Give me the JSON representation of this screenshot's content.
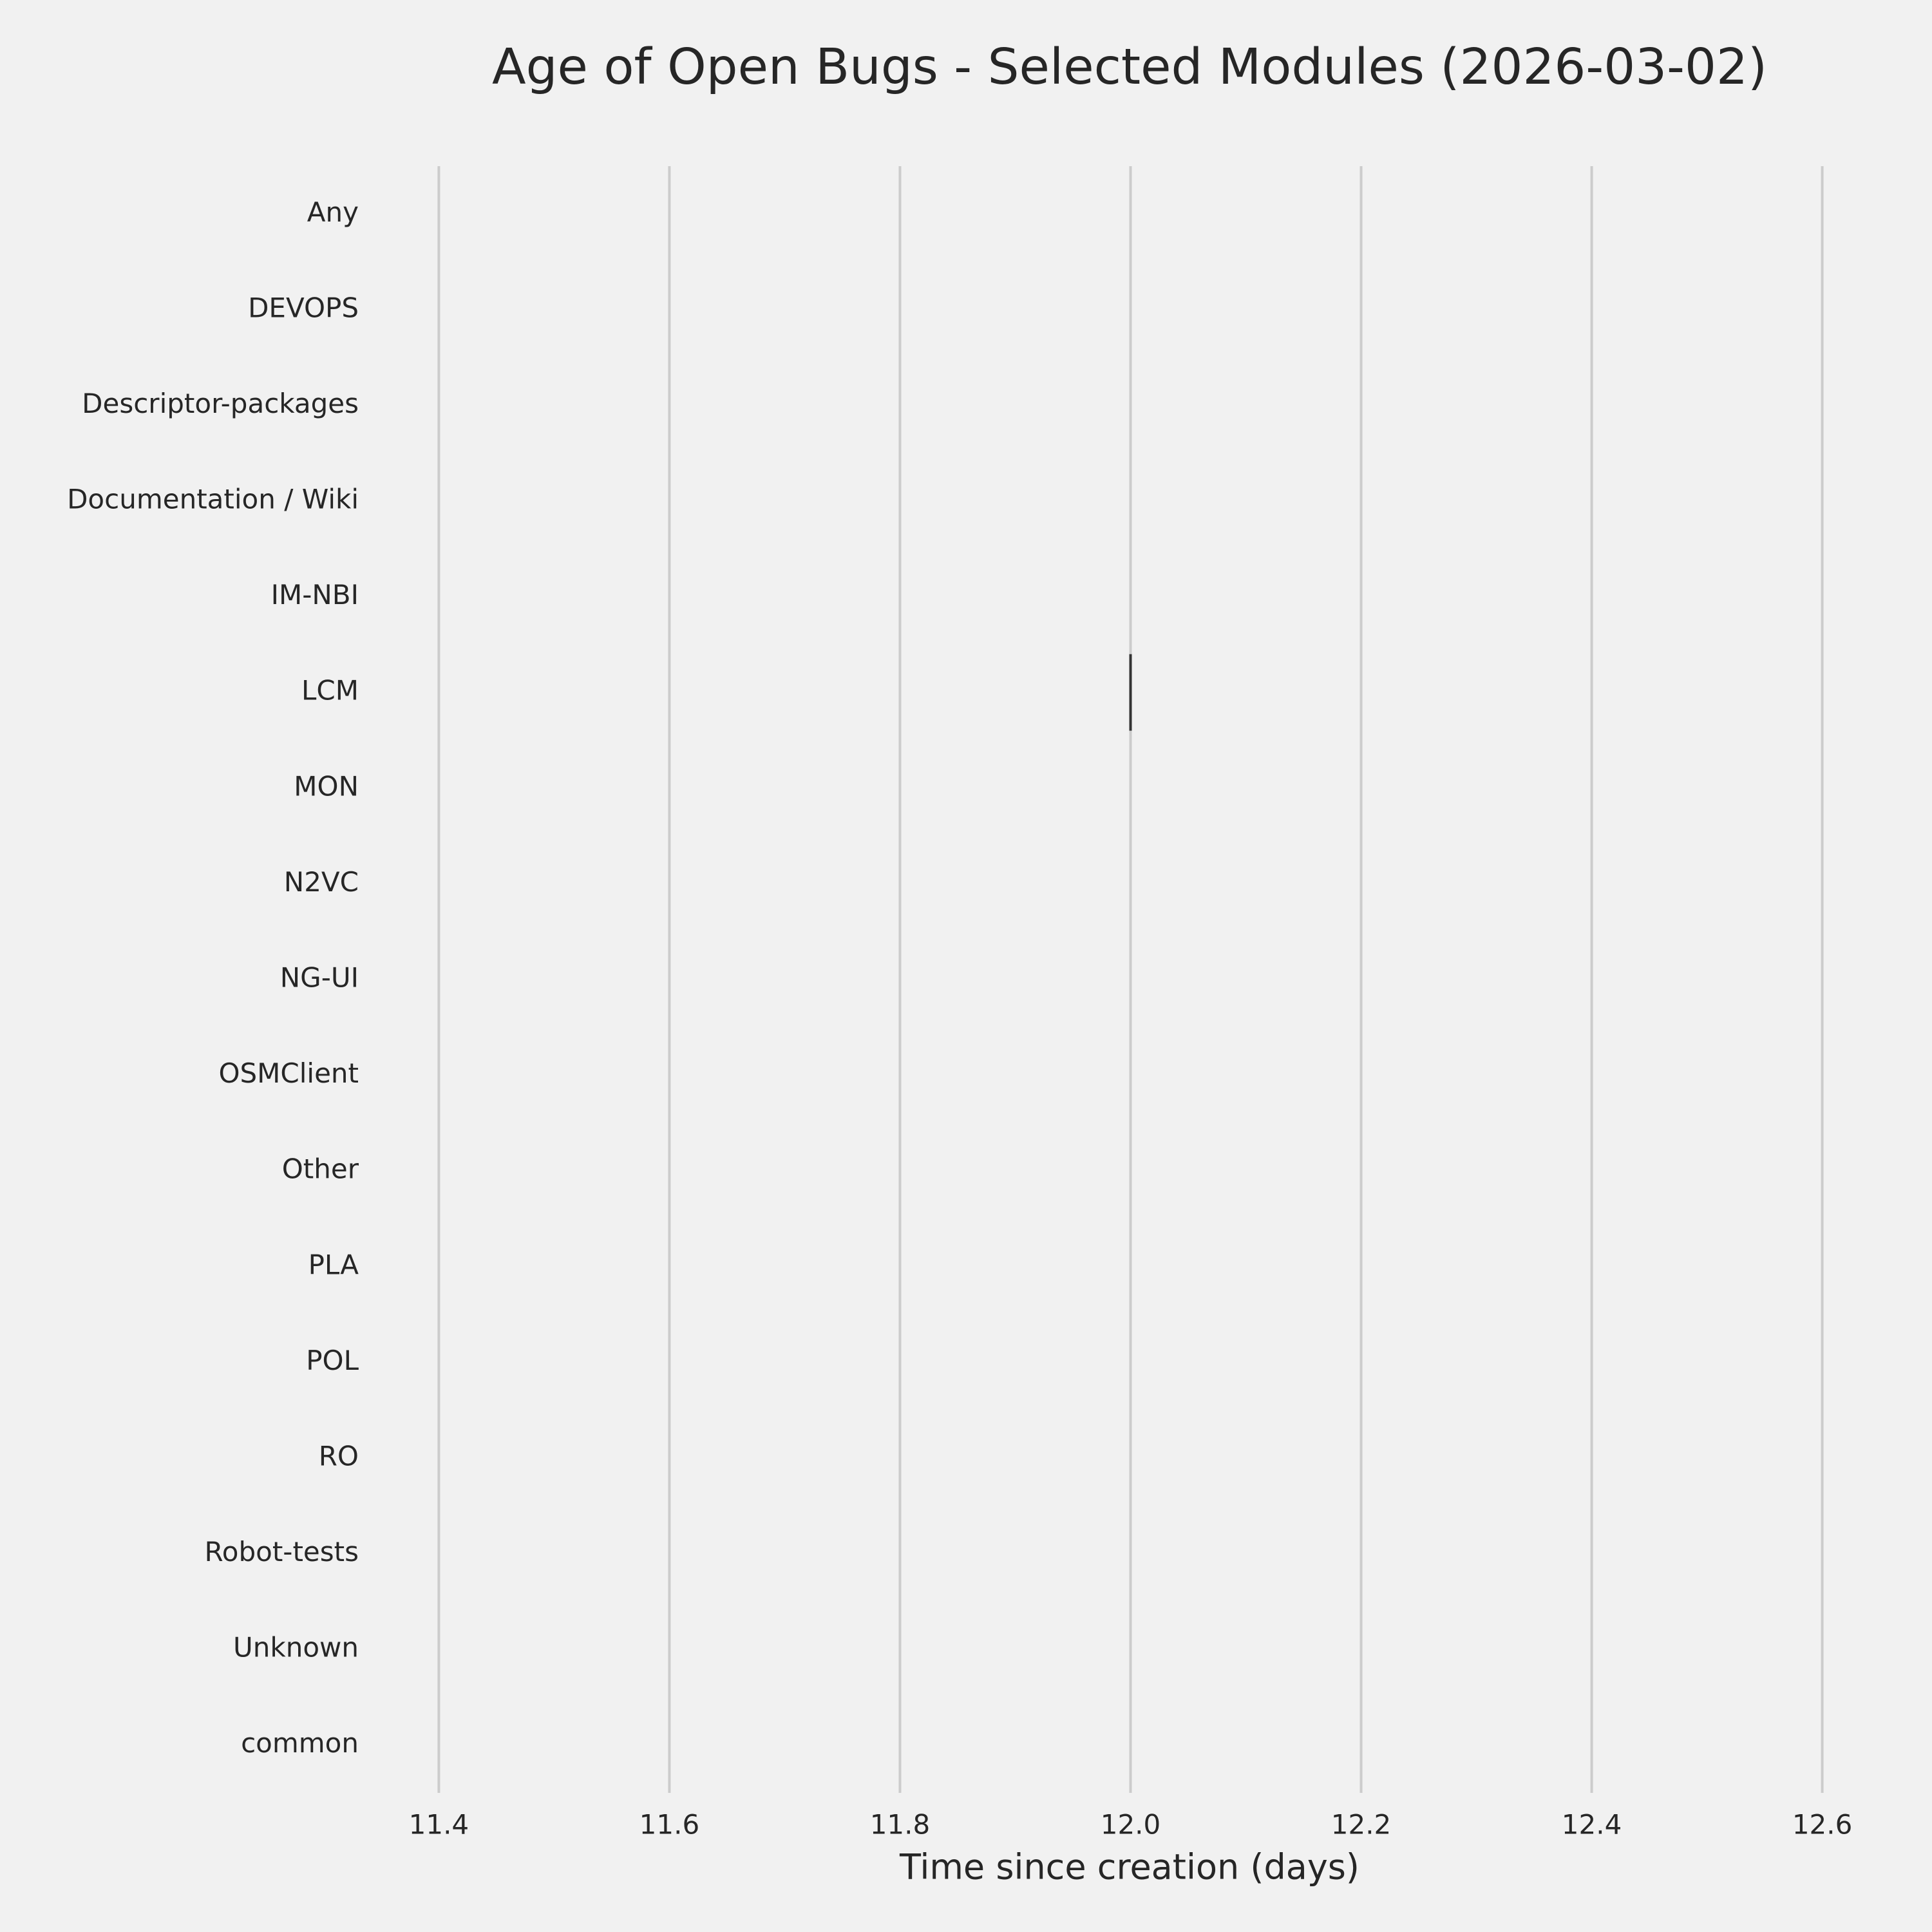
{
  "chart_data": {
    "type": "box",
    "title": "Age of Open Bugs - Selected Modules (2026-03-02)",
    "x_label": "Time since creation (days)",
    "categories": [
      "Any",
      "DEVOPS",
      "Descriptor-packages",
      "Documentation / Wiki",
      "IM-NBI",
      "LCM",
      "MON",
      "N2VC",
      "NG-UI",
      "OSMClient",
      "Other",
      "PLA",
      "POL",
      "RO",
      "Robot-tests",
      "Unknown",
      "common"
    ],
    "values": [
      null,
      null,
      null,
      null,
      null,
      12,
      null,
      null,
      null,
      null,
      null,
      null,
      null,
      null,
      null,
      null,
      null
    ],
    "color": "#333333",
    "xlim": [
      11.34,
      12.66
    ],
    "xticks": [
      11.4,
      11.6,
      11.8,
      {
        "value": 12,
        "label": "12.0"
      },
      12.2,
      12.4,
      12.6
    ],
    "grid": true
  }
}
